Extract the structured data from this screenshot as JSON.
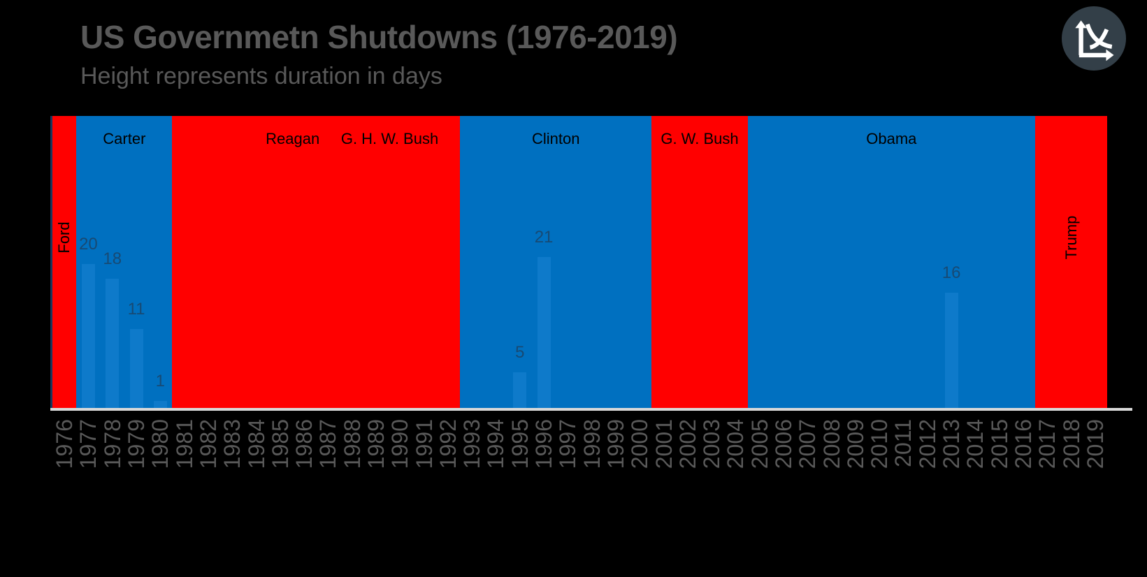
{
  "header": {
    "title": "US Governmetn Shutdowns (1976-2019)",
    "subtitle": "Height represents duration in days"
  },
  "logo": {
    "icon": "chart-curves-icon",
    "background_color": "#333F48",
    "glyph_color": "#FFFFFF"
  },
  "chart_data": {
    "type": "bar",
    "title": "US Governmetn Shutdowns (1976-2019)",
    "subtitle": "Height represents duration in days",
    "xlabel": "",
    "ylabel": "duration in days (implicit, no y-axis shown)",
    "x_range": [
      1976,
      2019
    ],
    "ylim": [
      0,
      40
    ],
    "grid": false,
    "legend": "none",
    "years": [
      1976,
      1977,
      1978,
      1979,
      1980,
      1981,
      1982,
      1983,
      1984,
      1985,
      1986,
      1987,
      1988,
      1989,
      1990,
      1991,
      1992,
      1993,
      1994,
      1995,
      1996,
      1997,
      1998,
      1999,
      2000,
      2001,
      2002,
      2003,
      2004,
      2005,
      2006,
      2007,
      2008,
      2009,
      2010,
      2011,
      2012,
      2013,
      2014,
      2015,
      2016,
      2017,
      2018,
      2019
    ],
    "president_bands": [
      {
        "name": "Ford",
        "party": "republican",
        "start_year": 1976,
        "end_year": 1976,
        "label_orientation": "vertical"
      },
      {
        "name": "Carter",
        "party": "democrat",
        "start_year": 1977,
        "end_year": 1980,
        "label_orientation": "horizontal"
      },
      {
        "name": "Reagan",
        "party": "republican",
        "start_year": 1981,
        "end_year": 1988,
        "label_orientation": "horizontal"
      },
      {
        "name": "G. H. W. Bush",
        "party": "republican",
        "start_year": 1989,
        "end_year": 1992,
        "label_orientation": "horizontal"
      },
      {
        "name": "Clinton",
        "party": "democrat",
        "start_year": 1993,
        "end_year": 2000,
        "label_orientation": "horizontal"
      },
      {
        "name": "G. W. Bush",
        "party": "republican",
        "start_year": 2001,
        "end_year": 2004,
        "label_orientation": "horizontal"
      },
      {
        "name": "Obama",
        "party": "democrat",
        "start_year": 2005,
        "end_year": 2016,
        "label_orientation": "horizontal"
      },
      {
        "name": "Trump",
        "party": "republican",
        "start_year": 2017,
        "end_year": 2019,
        "label_orientation": "vertical"
      }
    ],
    "visible_shutdown_bars": [
      {
        "year": 1977,
        "days": 20
      },
      {
        "year": 1978,
        "days": 18
      },
      {
        "year": 1979,
        "days": 11
      },
      {
        "year": 1980,
        "days": 1
      },
      {
        "year": 1995,
        "days": 5
      },
      {
        "year": 1996,
        "days": 21
      },
      {
        "year": 2013,
        "days": 16
      }
    ],
    "colors": {
      "republican_band": "#FF0000",
      "democrat_band": "#0070C0",
      "bar_fill": "#0E7ACA",
      "bar_value_label": "#174A74",
      "president_label": "#000000",
      "axis_line": "#D9D9D9",
      "year_tick_label": "#595959",
      "title_text": "#595959",
      "background": "#000000"
    }
  }
}
